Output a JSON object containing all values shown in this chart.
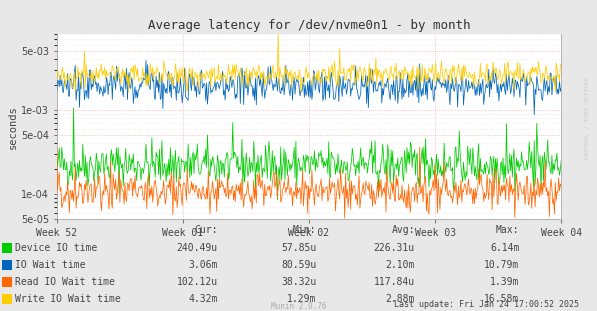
{
  "title": "Average latency for /dev/nvme0n1 - by month",
  "ylabel": "seconds",
  "xlabel_ticks": [
    "Week 52",
    "Week 01",
    "Week 02",
    "Week 03",
    "Week 04"
  ],
  "background_color": "#e8e8e8",
  "plot_bg_color": "#ffffff",
  "grid_color_minor": "#dddddd",
  "grid_color_major": "#ffaaaa",
  "ylim_min": 5e-05,
  "ylim_max": 0.008,
  "legend": [
    {
      "label": "Device IO time",
      "color": "#00cc00"
    },
    {
      "label": "IO Wait time",
      "color": "#0066bb"
    },
    {
      "label": "Read IO Wait time",
      "color": "#ff6600"
    },
    {
      "label": "Write IO Wait time",
      "color": "#ffcc00"
    }
  ],
  "table_headers": [
    "Cur:",
    "Min:",
    "Avg:",
    "Max:"
  ],
  "table_rows": [
    [
      "240.49u",
      "57.85u",
      "226.31u",
      "6.14m"
    ],
    [
      "3.06m",
      "80.59u",
      "2.10m",
      "10.79m"
    ],
    [
      "102.12u",
      "38.32u",
      "117.84u",
      "1.39m"
    ],
    [
      "4.32m",
      "1.29m",
      "2.88m",
      "16.58m"
    ]
  ],
  "last_update": "Last update: Fri Jan 24 17:00:52 2025",
  "munin_version": "Munin 2.0.76",
  "rrdtool_label": "RRDTOOL / TOBI OETIKER",
  "n_points": 600,
  "seed": 42,
  "green_base_log10": -3.65,
  "green_noise": 0.13,
  "blue_base_log10": -2.72,
  "blue_noise": 0.1,
  "orange_base_log10": -3.97,
  "orange_noise": 0.11,
  "yellow_base_log10": -2.58,
  "yellow_noise": 0.07,
  "figwidth": 5.97,
  "figheight": 3.11,
  "dpi": 100
}
